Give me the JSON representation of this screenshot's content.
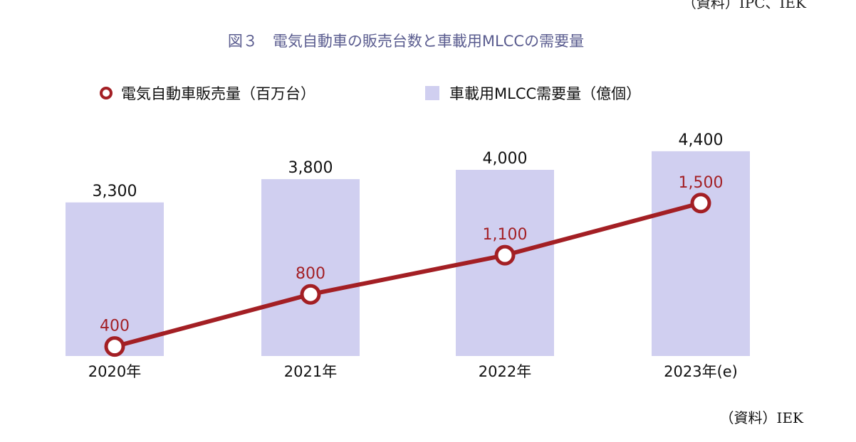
{
  "header_cut_text": "（資料）IPC、IEK",
  "chart_data": {
    "type": "bar",
    "title": "図３　電気自動車の販売台数と車載用MLCCの需要量",
    "categories": [
      "2020年",
      "2021年",
      "2022年",
      "2023年(e)"
    ],
    "series": [
      {
        "name": "車載用MLCC需要量（億個）",
        "type": "bar",
        "color": "#d0cff0",
        "values": [
          3300,
          3800,
          4000,
          4400
        ],
        "labels": [
          "3,300",
          "3,800",
          "4,000",
          "4,400"
        ]
      },
      {
        "name": "電気自動車販売量（百万台）",
        "type": "line",
        "color": "#a31f24",
        "values": [
          400,
          800,
          1100,
          1500
        ],
        "labels": [
          "400",
          "800",
          "1,100",
          "1,500"
        ]
      }
    ],
    "legend_position": "top-left",
    "grid": false
  },
  "source": "（資料）IEK"
}
